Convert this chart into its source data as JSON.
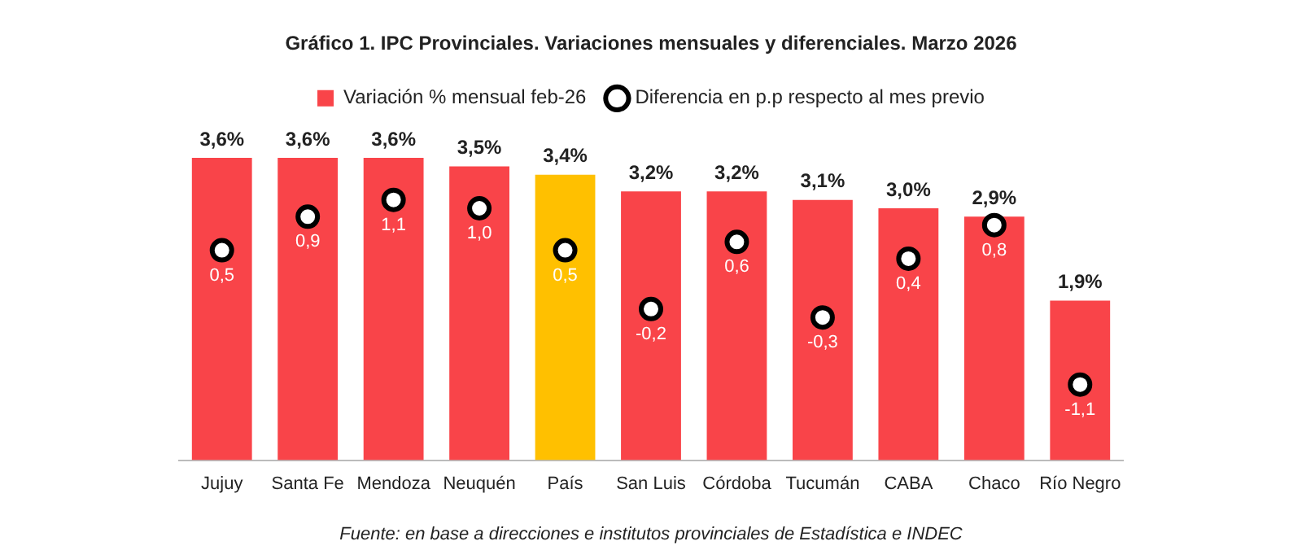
{
  "chart_data": {
    "type": "bar",
    "title": "Gráfico 1. IPC Provinciales. Variaciones mensuales y diferenciales. Marzo 2026",
    "categories": [
      "Jujuy",
      "Santa Fe",
      "Mendoza",
      "Neuquén",
      "País",
      "San Luis",
      "Córdoba",
      "Tucumán",
      "CABA",
      "Chaco",
      "Río Negro"
    ],
    "series": [
      {
        "name": "Variación % mensual feb-26",
        "colors": [
          "#f94449",
          "#f94449",
          "#f94449",
          "#f94449",
          "#ffc000",
          "#f94449",
          "#f94449",
          "#f94449",
          "#f94449",
          "#f94449",
          "#f94449"
        ],
        "values": [
          3.6,
          3.6,
          3.6,
          3.5,
          3.4,
          3.2,
          3.2,
          3.1,
          3.0,
          2.9,
          1.9
        ],
        "value_labels": [
          "3,6%",
          "3,6%",
          "3,6%",
          "3,5%",
          "3,4%",
          "3,2%",
          "3,2%",
          "3,1%",
          "3,0%",
          "2,9%",
          "1,9%"
        ]
      },
      {
        "name": "Diferencia en p.p respecto al mes previo",
        "type": "scatter",
        "axis": "y2",
        "color": "#ffffff",
        "values": [
          0.5,
          0.9,
          1.1,
          1.0,
          0.5,
          -0.2,
          0.6,
          -0.3,
          0.4,
          0.8,
          -1.1
        ],
        "value_labels": [
          "0,5",
          "0,9",
          "1,1",
          "1,0",
          "0,5",
          "-0,2",
          "0,6",
          "-0,3",
          "0,4",
          "0,8",
          "-1,1"
        ]
      }
    ],
    "tick_labels": "x",
    "grid": false,
    "legend": "top",
    "marker": "circle",
    "annotations": [
      "Fuente: en base a direcciones e institutos provinciales de Estadística e INDEC"
    ]
  }
}
